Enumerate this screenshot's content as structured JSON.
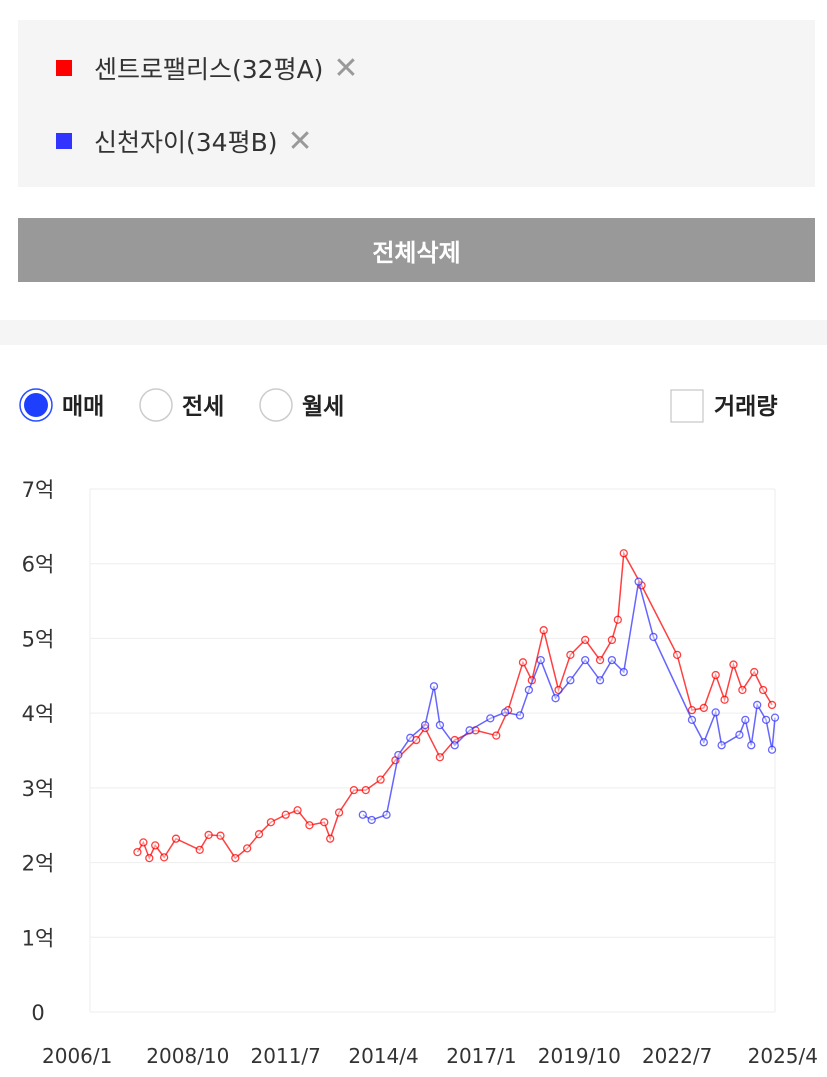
{
  "delete_all_button": "전체삭제",
  "options": {
    "radios": [
      "매매",
      "전세",
      "월세"
    ],
    "selected": 0,
    "checkbox": "거래량"
  },
  "chart_data": {
    "type": "line",
    "grid": true,
    "xlim": [
      "2006/1",
      "2025/4"
    ],
    "xticks": [
      "2006/1",
      "2008/10",
      "2011/7",
      "2014/4",
      "2017/1",
      "2019/10",
      "2022/7",
      "2025/4"
    ],
    "ylim": [
      0,
      7
    ],
    "yticks": [
      0,
      {
        "value": 1,
        "label": "1억"
      },
      {
        "value": 2,
        "label": "2억"
      },
      {
        "value": 3,
        "label": "3억"
      },
      {
        "value": 4,
        "label": "4억"
      },
      {
        "value": 5,
        "label": "5억"
      },
      {
        "value": 6,
        "label": "6억"
      },
      {
        "value": 7,
        "label": "7억"
      }
    ],
    "series": [
      {
        "name": "센트로팰리스(32평A)",
        "color": "#ff0000",
        "x": [
          "2007/5",
          "2007/7",
          "2007/9",
          "2007/11",
          "2008/2",
          "2008/6",
          "2009/2",
          "2009/5",
          "2009/9",
          "2010/2",
          "2010/6",
          "2010/10",
          "2011/2",
          "2011/7",
          "2011/11",
          "2012/3",
          "2012/8",
          "2012/10",
          "2013/1",
          "2013/6",
          "2013/10",
          "2014/3",
          "2014/8",
          "2015/3",
          "2015/6",
          "2015/11",
          "2016/4",
          "2016/11",
          "2017/6",
          "2017/10",
          "2018/3",
          "2018/6",
          "2018/10",
          "2019/3",
          "2019/7",
          "2019/12",
          "2020/5",
          "2020/9",
          "2020/11",
          "2021/1",
          "2021/7",
          "2022/7",
          "2022/12",
          "2023/4",
          "2023/8",
          "2023/11",
          "2024/2",
          "2024/5",
          "2024/9",
          "2024/12",
          "2025/3"
        ],
        "values": [
          2.14,
          2.27,
          2.06,
          2.23,
          2.07,
          2.32,
          2.17,
          2.37,
          2.36,
          2.06,
          2.19,
          2.38,
          2.54,
          2.64,
          2.7,
          2.5,
          2.54,
          2.32,
          2.67,
          2.97,
          2.97,
          3.11,
          3.37,
          3.64,
          3.8,
          3.41,
          3.64,
          3.77,
          3.7,
          4.04,
          4.68,
          4.44,
          5.11,
          4.31,
          4.78,
          4.98,
          4.71,
          4.98,
          5.25,
          6.14,
          5.71,
          4.78,
          4.04,
          4.07,
          4.51,
          4.18,
          4.65,
          4.31,
          4.55,
          4.31,
          4.11
        ]
      },
      {
        "name": "신천자이(34평B)",
        "color": "#3333ff",
        "x": [
          "2013/9",
          "2013/12",
          "2014/5",
          "2014/9",
          "2015/1",
          "2015/6",
          "2015/9",
          "2015/11",
          "2016/4",
          "2016/9",
          "2017/4",
          "2017/9",
          "2018/2",
          "2018/5",
          "2018/9",
          "2019/2",
          "2019/7",
          "2019/12",
          "2020/5",
          "2020/9",
          "2021/1",
          "2021/6",
          "2021/11",
          "2022/12",
          "2023/4",
          "2023/8",
          "2023/10",
          "2024/4",
          "2024/6",
          "2024/8",
          "2024/10",
          "2025/1",
          "2025/3",
          "2025/4"
        ],
        "values": [
          2.64,
          2.57,
          2.64,
          3.44,
          3.67,
          3.84,
          4.36,
          3.84,
          3.57,
          3.77,
          3.93,
          4.01,
          3.97,
          4.31,
          4.71,
          4.2,
          4.44,
          4.71,
          4.44,
          4.71,
          4.55,
          5.76,
          5.02,
          3.91,
          3.61,
          4.01,
          3.57,
          3.71,
          3.91,
          3.57,
          4.11,
          3.91,
          3.51,
          3.94
        ]
      }
    ]
  }
}
